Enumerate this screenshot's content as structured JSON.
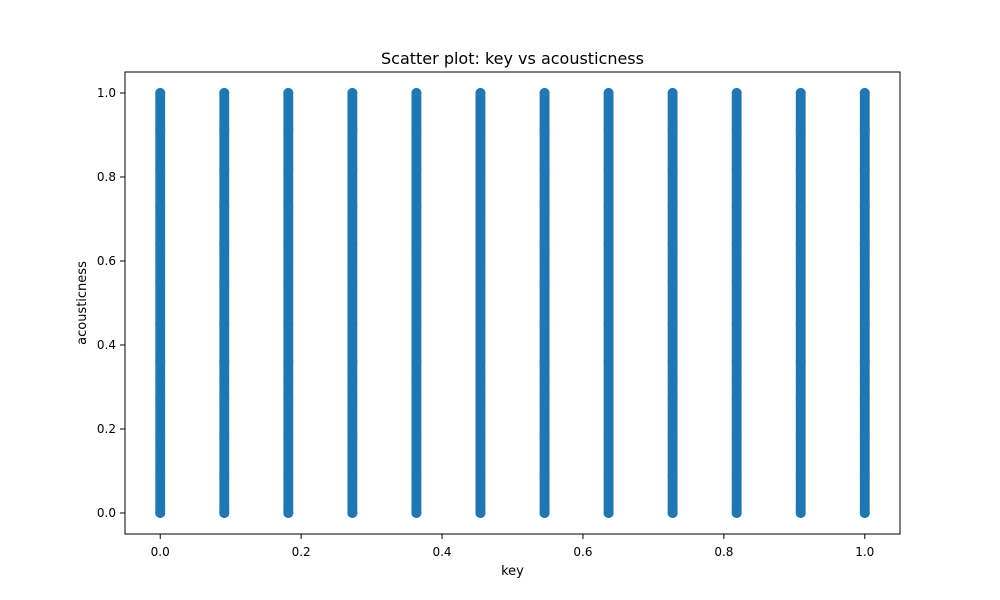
{
  "chart_data": {
    "type": "scatter",
    "title": "Scatter plot: key vs acousticness",
    "xlabel": "key",
    "ylabel": "acousticness",
    "xlim": [
      -0.05,
      1.05
    ],
    "ylim": [
      -0.05,
      1.05
    ],
    "x_ticks": [
      0.0,
      0.2,
      0.4,
      0.6,
      0.8,
      1.0
    ],
    "x_tick_labels": [
      "0.0",
      "0.2",
      "0.4",
      "0.6",
      "0.8",
      "1.0"
    ],
    "y_ticks": [
      0.0,
      0.2,
      0.4,
      0.6,
      0.8,
      1.0
    ],
    "y_tick_labels": [
      "0.0",
      "0.2",
      "0.4",
      "0.6",
      "0.8",
      "1.0"
    ],
    "grid": false,
    "legend": "none",
    "point_color": "#1f77b4",
    "series": [
      {
        "x": [
          0.0,
          0.0,
          0.0,
          0.0,
          0.0,
          0.0,
          0.0,
          0.0,
          0.0,
          0.0,
          0.0,
          0.0,
          0.0909,
          0.0909,
          0.0909,
          0.0909,
          0.0909,
          0.0909,
          0.0909,
          0.0909,
          0.0909,
          0.0909,
          0.0909,
          0.0909,
          0.1818,
          0.1818,
          0.1818,
          0.1818,
          0.1818,
          0.1818,
          0.1818,
          0.1818,
          0.1818,
          0.1818,
          0.1818,
          0.1818,
          0.2727,
          0.2727,
          0.2727,
          0.2727,
          0.2727,
          0.2727,
          0.2727,
          0.2727,
          0.2727,
          0.2727,
          0.2727,
          0.2727,
          0.3636,
          0.3636,
          0.3636,
          0.3636,
          0.3636,
          0.3636,
          0.3636,
          0.3636,
          0.3636,
          0.3636,
          0.3636,
          0.3636,
          0.4545,
          0.4545,
          0.4545,
          0.4545,
          0.4545,
          0.4545,
          0.4545,
          0.4545,
          0.4545,
          0.4545,
          0.4545,
          0.4545,
          0.5455,
          0.5455,
          0.5455,
          0.5455,
          0.5455,
          0.5455,
          0.5455,
          0.5455,
          0.5455,
          0.5455,
          0.5455,
          0.5455,
          0.6364,
          0.6364,
          0.6364,
          0.6364,
          0.6364,
          0.6364,
          0.6364,
          0.6364,
          0.6364,
          0.6364,
          0.6364,
          0.6364,
          0.7273,
          0.7273,
          0.7273,
          0.7273,
          0.7273,
          0.7273,
          0.7273,
          0.7273,
          0.7273,
          0.7273,
          0.7273,
          0.7273,
          0.8182,
          0.8182,
          0.8182,
          0.8182,
          0.8182,
          0.8182,
          0.8182,
          0.8182,
          0.8182,
          0.8182,
          0.8182,
          0.8182,
          0.9091,
          0.9091,
          0.9091,
          0.9091,
          0.9091,
          0.9091,
          0.9091,
          0.9091,
          0.9091,
          0.9091,
          0.9091,
          0.9091,
          1.0,
          1.0,
          1.0,
          1.0,
          1.0,
          1.0,
          1.0,
          1.0,
          1.0,
          1.0,
          1.0,
          1.0
        ],
        "y": [
          0.0,
          0.09,
          0.18,
          0.27,
          0.36,
          0.45,
          0.55,
          0.64,
          0.73,
          0.82,
          0.91,
          1.0,
          0.0,
          0.09,
          0.18,
          0.27,
          0.36,
          0.45,
          0.55,
          0.64,
          0.73,
          0.82,
          0.91,
          1.0,
          0.0,
          0.09,
          0.18,
          0.27,
          0.36,
          0.45,
          0.55,
          0.64,
          0.73,
          0.82,
          0.91,
          1.0,
          0.0,
          0.09,
          0.18,
          0.27,
          0.36,
          0.45,
          0.55,
          0.64,
          0.73,
          0.82,
          0.91,
          1.0,
          0.0,
          0.09,
          0.18,
          0.27,
          0.36,
          0.45,
          0.55,
          0.64,
          0.73,
          0.82,
          0.91,
          1.0,
          0.0,
          0.09,
          0.18,
          0.27,
          0.36,
          0.45,
          0.55,
          0.64,
          0.73,
          0.82,
          0.91,
          1.0,
          0.0,
          0.09,
          0.18,
          0.27,
          0.36,
          0.45,
          0.55,
          0.64,
          0.73,
          0.82,
          0.91,
          1.0,
          0.0,
          0.09,
          0.18,
          0.27,
          0.36,
          0.45,
          0.55,
          0.64,
          0.73,
          0.82,
          0.91,
          1.0,
          0.0,
          0.09,
          0.18,
          0.27,
          0.36,
          0.45,
          0.55,
          0.64,
          0.73,
          0.82,
          0.91,
          1.0,
          0.0,
          0.09,
          0.18,
          0.27,
          0.36,
          0.45,
          0.55,
          0.64,
          0.73,
          0.82,
          0.91,
          1.0,
          0.0,
          0.09,
          0.18,
          0.27,
          0.36,
          0.45,
          0.55,
          0.64,
          0.73,
          0.82,
          0.91,
          1.0,
          0.0,
          0.09,
          0.18,
          0.27,
          0.36,
          0.45,
          0.55,
          0.64,
          0.73,
          0.82,
          0.91,
          1.0
        ]
      }
    ]
  }
}
